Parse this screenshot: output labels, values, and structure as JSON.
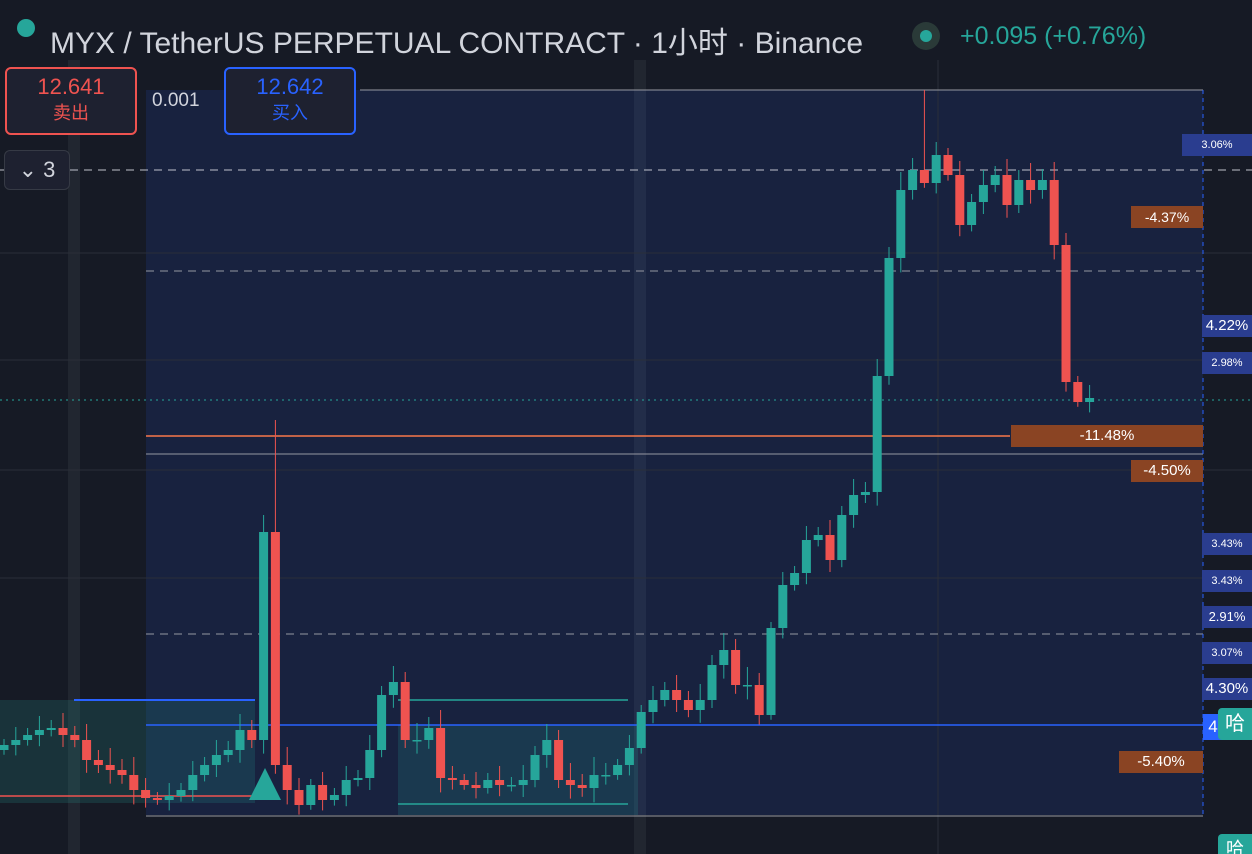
{
  "header": {
    "title": "MYX / TetherUS PERPETUAL CONTRACT · 1小时 · Binance",
    "change": "+0.095 (+0.76%)"
  },
  "trade": {
    "sell_price": "12.641",
    "sell_label": "卖出",
    "quantity": "0.001",
    "buy_price": "12.642",
    "buy_label": "买入"
  },
  "layers": {
    "count": "3"
  },
  "price_labels": [
    "3.06%",
    "-4.37%",
    "4.22%",
    "2.98%",
    "-11.48%",
    "-4.50%",
    "3.43%",
    "3.43%",
    "2.91%",
    "3.07%",
    "4.30%",
    "-5.40%"
  ],
  "side_tags": [
    "4",
    "哈",
    "哈"
  ]
}
